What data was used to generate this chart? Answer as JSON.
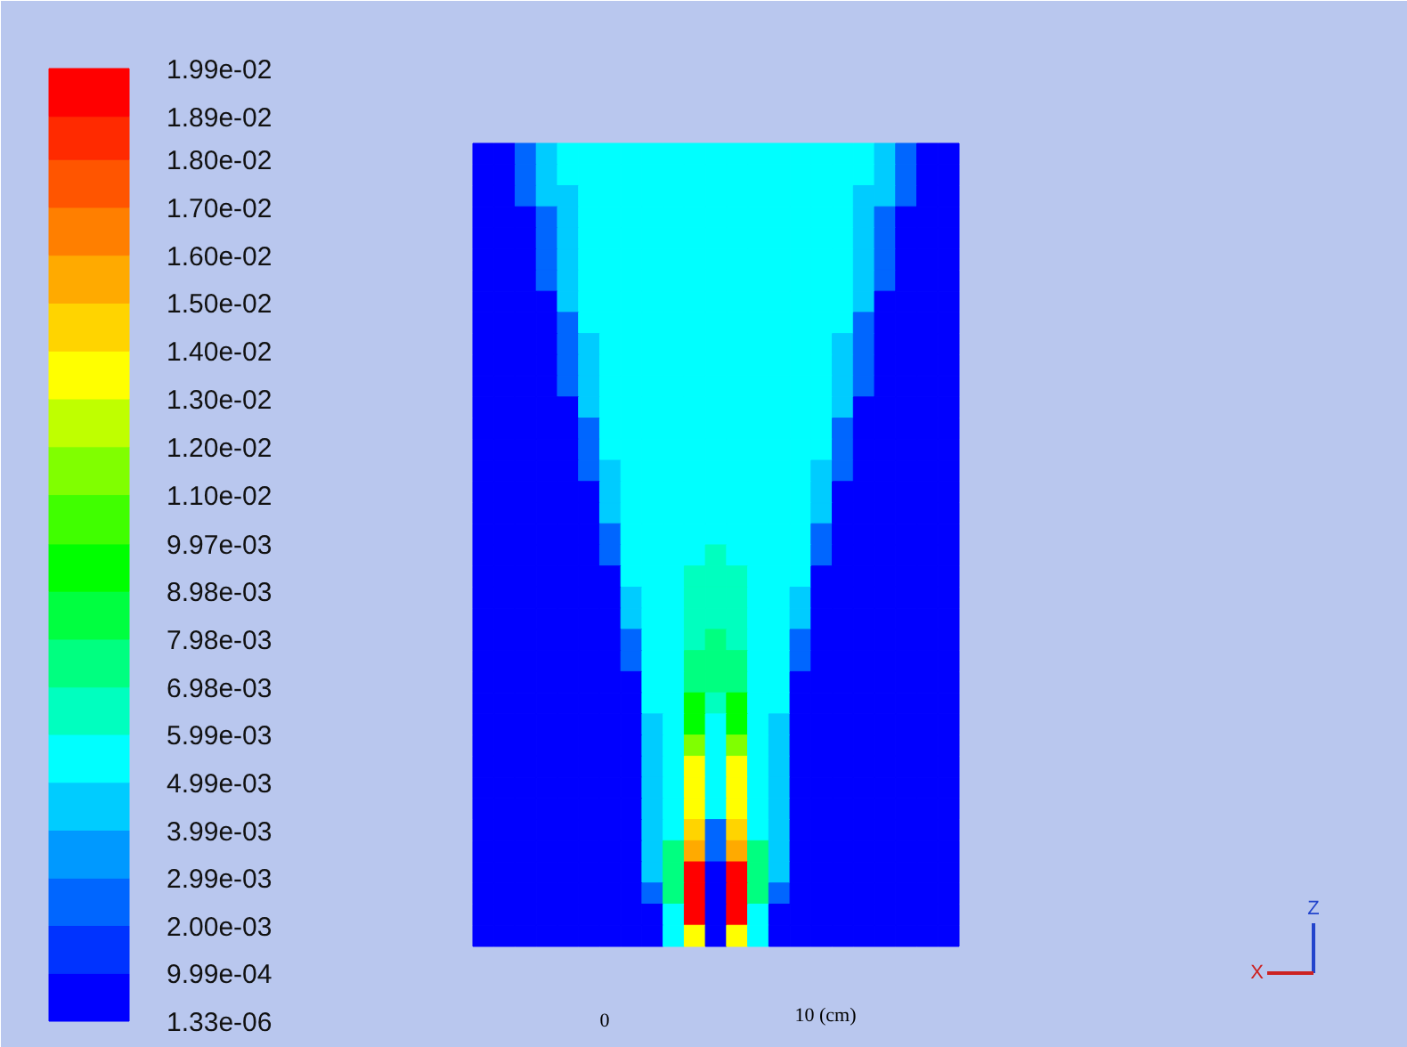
{
  "chart_data": {
    "type": "heatmap",
    "categories": [
      null,
      null,
      null,
      null,
      null,
      null,
      null,
      null,
      null,
      null,
      null,
      null,
      null,
      null,
      null,
      null,
      null,
      null,
      null,
      null,
      null,
      null,
      null
    ],
    "y_categories": [
      null,
      null,
      null,
      null,
      null,
      null,
      null,
      null,
      null,
      null,
      null,
      null,
      null,
      null,
      null,
      null,
      null,
      null,
      null,
      null,
      null,
      null,
      null,
      null,
      null,
      null,
      null,
      null,
      null,
      null,
      null,
      null,
      null,
      null,
      null,
      null,
      null,
      null
    ],
    "clim": [
      1.33e-06,
      0.0199
    ],
    "cticks": [
      {
        "value": 1.33e-06,
        "label": "1.33e-06"
      },
      {
        "value": 0.000999,
        "label": "9.99e-04"
      },
      {
        "value": 0.002,
        "label": "2.00e-03"
      },
      {
        "value": 0.00299,
        "label": "2.99e-03"
      },
      {
        "value": 0.00399,
        "label": "3.99e-03"
      },
      {
        "value": 0.00499,
        "label": "4.99e-03"
      },
      {
        "value": 0.00599,
        "label": "5.99e-03"
      },
      {
        "value": 0.00698,
        "label": "6.98e-03"
      },
      {
        "value": 0.00798,
        "label": "7.98e-03"
      },
      {
        "value": 0.00898,
        "label": "8.98e-03"
      },
      {
        "value": 0.00997,
        "label": "9.97e-03"
      },
      {
        "value": 0.011,
        "label": "1.10e-02"
      },
      {
        "value": 0.012,
        "label": "1.20e-02"
      },
      {
        "value": 0.013,
        "label": "1.30e-02"
      },
      {
        "value": 0.014,
        "label": "1.40e-02"
      },
      {
        "value": 0.015,
        "label": "1.50e-02"
      },
      {
        "value": 0.016,
        "label": "1.60e-02"
      },
      {
        "value": 0.017,
        "label": "1.70e-02"
      },
      {
        "value": 0.018,
        "label": "1.80e-02"
      },
      {
        "value": 0.0189,
        "label": "1.89e-02"
      },
      {
        "value": 0.0199,
        "label": "1.99e-02"
      }
    ],
    "annotations": [
      "0",
      "10 (cm)",
      "X",
      "Z"
    ],
    "cells": [
      [
        0.0005,
        0.0005,
        0.0025,
        0.0045,
        0.0055,
        0.0055,
        0.0055,
        0.0055,
        0.0055,
        0.0055,
        0.0055,
        0.0055,
        0.0055,
        0.0055,
        0.0055,
        0.0055,
        0.0055,
        0.0055,
        0.0055,
        0.0045,
        0.0025,
        0.0005,
        0.0005
      ],
      [
        0.0005,
        0.0005,
        0.0025,
        0.0045,
        0.0055,
        0.0055,
        0.0055,
        0.0055,
        0.0055,
        0.0055,
        0.0055,
        0.0055,
        0.0055,
        0.0055,
        0.0055,
        0.0055,
        0.0055,
        0.0055,
        0.0055,
        0.0045,
        0.0025,
        0.0005,
        0.0005
      ],
      [
        0.0005,
        0.0005,
        0.0025,
        0.0045,
        0.0045,
        0.0055,
        0.0055,
        0.0055,
        0.0055,
        0.0055,
        0.0055,
        0.0055,
        0.0055,
        0.0055,
        0.0055,
        0.0055,
        0.0055,
        0.0055,
        0.0045,
        0.0045,
        0.0025,
        0.0005,
        0.0005
      ],
      [
        0.0005,
        0.0005,
        0.0005,
        0.0025,
        0.0045,
        0.0055,
        0.0055,
        0.0055,
        0.0055,
        0.0055,
        0.0055,
        0.0055,
        0.0055,
        0.0055,
        0.0055,
        0.0055,
        0.0055,
        0.0055,
        0.0045,
        0.0025,
        0.0005,
        0.0005,
        0.0005
      ],
      [
        0.0005,
        0.0005,
        0.0005,
        0.0025,
        0.0045,
        0.0055,
        0.0055,
        0.0055,
        0.0055,
        0.0055,
        0.0055,
        0.0055,
        0.0055,
        0.0055,
        0.0055,
        0.0055,
        0.0055,
        0.0055,
        0.0045,
        0.0025,
        0.0005,
        0.0005,
        0.0005
      ],
      [
        0.0005,
        0.0005,
        0.0005,
        0.0025,
        0.0045,
        0.0055,
        0.0055,
        0.0055,
        0.0055,
        0.0055,
        0.0055,
        0.0055,
        0.0055,
        0.0055,
        0.0055,
        0.0055,
        0.0055,
        0.0055,
        0.0045,
        0.0025,
        0.0005,
        0.0005,
        0.0005
      ],
      [
        0.0005,
        0.0005,
        0.0005,
        0.0025,
        0.0045,
        0.0055,
        0.0055,
        0.0055,
        0.0055,
        0.0055,
        0.0055,
        0.0055,
        0.0055,
        0.0055,
        0.0055,
        0.0055,
        0.0055,
        0.0055,
        0.0045,
        0.0025,
        0.0005,
        0.0005,
        0.0005
      ],
      [
        0.0005,
        0.0005,
        0.0005,
        0.0005,
        0.0045,
        0.0055,
        0.0055,
        0.0055,
        0.0055,
        0.0055,
        0.0055,
        0.0055,
        0.0055,
        0.0055,
        0.0055,
        0.0055,
        0.0055,
        0.0055,
        0.0045,
        0.0005,
        0.0005,
        0.0005,
        0.0005
      ],
      [
        0.0005,
        0.0005,
        0.0005,
        0.0005,
        0.0025,
        0.0055,
        0.0055,
        0.0055,
        0.0055,
        0.0055,
        0.0055,
        0.0055,
        0.0055,
        0.0055,
        0.0055,
        0.0055,
        0.0055,
        0.0055,
        0.0025,
        0.0005,
        0.0005,
        0.0005,
        0.0005
      ],
      [
        0.0005,
        0.0005,
        0.0005,
        0.0005,
        0.0025,
        0.0045,
        0.0055,
        0.0055,
        0.0055,
        0.0055,
        0.0055,
        0.0055,
        0.0055,
        0.0055,
        0.0055,
        0.0055,
        0.0055,
        0.0045,
        0.0025,
        0.0005,
        0.0005,
        0.0005,
        0.0005
      ],
      [
        0.0005,
        0.0005,
        0.0005,
        0.0005,
        0.0025,
        0.0045,
        0.0055,
        0.0055,
        0.0055,
        0.0055,
        0.0055,
        0.0055,
        0.0055,
        0.0055,
        0.0055,
        0.0055,
        0.0055,
        0.0045,
        0.0025,
        0.0005,
        0.0005,
        0.0005,
        0.0005
      ],
      [
        0.0005,
        0.0005,
        0.0005,
        0.0005,
        0.0025,
        0.0045,
        0.0055,
        0.0055,
        0.0055,
        0.0055,
        0.0055,
        0.0055,
        0.0055,
        0.0055,
        0.0055,
        0.0055,
        0.0055,
        0.0045,
        0.0025,
        0.0005,
        0.0005,
        0.0005,
        0.0005
      ],
      [
        0.0005,
        0.0005,
        0.0005,
        0.0005,
        0.0005,
        0.0045,
        0.0055,
        0.0055,
        0.0055,
        0.0055,
        0.0055,
        0.0055,
        0.0055,
        0.0055,
        0.0055,
        0.0055,
        0.0055,
        0.0045,
        0.0005,
        0.0005,
        0.0005,
        0.0005,
        0.0005
      ],
      [
        0.0005,
        0.0005,
        0.0005,
        0.0005,
        0.0005,
        0.0025,
        0.0055,
        0.0055,
        0.0055,
        0.0055,
        0.0055,
        0.0055,
        0.0055,
        0.0055,
        0.0055,
        0.0055,
        0.0055,
        0.0025,
        0.0005,
        0.0005,
        0.0005,
        0.0005,
        0.0005
      ],
      [
        0.0005,
        0.0005,
        0.0005,
        0.0005,
        0.0005,
        0.0025,
        0.0055,
        0.0055,
        0.0055,
        0.0055,
        0.0055,
        0.0055,
        0.0055,
        0.0055,
        0.0055,
        0.0055,
        0.0055,
        0.0025,
        0.0005,
        0.0005,
        0.0005,
        0.0005,
        0.0005
      ],
      [
        0.0005,
        0.0005,
        0.0005,
        0.0005,
        0.0005,
        0.0025,
        0.0045,
        0.0055,
        0.0055,
        0.0055,
        0.0055,
        0.0055,
        0.0055,
        0.0055,
        0.0055,
        0.0055,
        0.0045,
        0.0025,
        0.0005,
        0.0005,
        0.0005,
        0.0005,
        0.0005
      ],
      [
        0.0005,
        0.0005,
        0.0005,
        0.0005,
        0.0005,
        0.0005,
        0.0045,
        0.0055,
        0.0055,
        0.0055,
        0.0055,
        0.0055,
        0.0055,
        0.0055,
        0.0055,
        0.0055,
        0.0045,
        0.0005,
        0.0005,
        0.0005,
        0.0005,
        0.0005,
        0.0005
      ],
      [
        0.0005,
        0.0005,
        0.0005,
        0.0005,
        0.0005,
        0.0005,
        0.0045,
        0.0055,
        0.0055,
        0.0055,
        0.0055,
        0.0055,
        0.0055,
        0.0055,
        0.0055,
        0.0055,
        0.0045,
        0.0005,
        0.0005,
        0.0005,
        0.0005,
        0.0005,
        0.0005
      ],
      [
        0.0005,
        0.0005,
        0.0005,
        0.0005,
        0.0005,
        0.0005,
        0.0025,
        0.0055,
        0.0055,
        0.0055,
        0.0055,
        0.0055,
        0.0055,
        0.0055,
        0.0055,
        0.0055,
        0.0025,
        0.0005,
        0.0005,
        0.0005,
        0.0005,
        0.0005,
        0.0005
      ],
      [
        0.0005,
        0.0005,
        0.0005,
        0.0005,
        0.0005,
        0.0005,
        0.0025,
        0.0055,
        0.0055,
        0.0055,
        0.0055,
        0.0065,
        0.0055,
        0.0055,
        0.0055,
        0.0055,
        0.0025,
        0.0005,
        0.0005,
        0.0005,
        0.0005,
        0.0005,
        0.0005
      ],
      [
        0.0005,
        0.0005,
        0.0005,
        0.0005,
        0.0005,
        0.0005,
        0.0005,
        0.0055,
        0.0055,
        0.0055,
        0.0065,
        0.0065,
        0.0065,
        0.0055,
        0.0055,
        0.0055,
        0.0005,
        0.0005,
        0.0005,
        0.0005,
        0.0005,
        0.0005,
        0.0005
      ],
      [
        0.0005,
        0.0005,
        0.0005,
        0.0005,
        0.0005,
        0.0005,
        0.0005,
        0.0045,
        0.0055,
        0.0055,
        0.0065,
        0.0065,
        0.0065,
        0.0055,
        0.0055,
        0.0045,
        0.0005,
        0.0005,
        0.0005,
        0.0005,
        0.0005,
        0.0005,
        0.0005
      ],
      [
        0.0005,
        0.0005,
        0.0005,
        0.0005,
        0.0005,
        0.0005,
        0.0005,
        0.0045,
        0.0055,
        0.0055,
        0.0065,
        0.0065,
        0.0065,
        0.0055,
        0.0055,
        0.0045,
        0.0005,
        0.0005,
        0.0005,
        0.0005,
        0.0005,
        0.0005,
        0.0005
      ],
      [
        0.0005,
        0.0005,
        0.0005,
        0.0005,
        0.0005,
        0.0005,
        0.0005,
        0.0025,
        0.0055,
        0.0055,
        0.0065,
        0.0075,
        0.0065,
        0.0055,
        0.0055,
        0.0025,
        0.0005,
        0.0005,
        0.0005,
        0.0005,
        0.0005,
        0.0005,
        0.0005
      ],
      [
        0.0005,
        0.0005,
        0.0005,
        0.0005,
        0.0005,
        0.0005,
        0.0005,
        0.0025,
        0.0055,
        0.0055,
        0.0075,
        0.0075,
        0.0075,
        0.0055,
        0.0055,
        0.0025,
        0.0005,
        0.0005,
        0.0005,
        0.0005,
        0.0005,
        0.0005,
        0.0005
      ],
      [
        0.0005,
        0.0005,
        0.0005,
        0.0005,
        0.0005,
        0.0005,
        0.0005,
        0.0005,
        0.0055,
        0.0055,
        0.0075,
        0.0075,
        0.0075,
        0.0055,
        0.0055,
        0.0005,
        0.0005,
        0.0005,
        0.0005,
        0.0005,
        0.0005,
        0.0005,
        0.0005
      ],
      [
        0.0005,
        0.0005,
        0.0005,
        0.0005,
        0.0005,
        0.0005,
        0.0005,
        0.0005,
        0.0055,
        0.0055,
        0.0095,
        0.0065,
        0.0095,
        0.0055,
        0.0055,
        0.0005,
        0.0005,
        0.0005,
        0.0005,
        0.0005,
        0.0005,
        0.0005,
        0.0005
      ],
      [
        0.0005,
        0.0005,
        0.0005,
        0.0005,
        0.0005,
        0.0005,
        0.0005,
        0.0005,
        0.0045,
        0.0055,
        0.0095,
        0.0055,
        0.0095,
        0.0055,
        0.0045,
        0.0005,
        0.0005,
        0.0005,
        0.0005,
        0.0005,
        0.0005,
        0.0005,
        0.0005
      ],
      [
        0.0005,
        0.0005,
        0.0005,
        0.0005,
        0.0005,
        0.0005,
        0.0005,
        0.0005,
        0.0045,
        0.0055,
        0.0115,
        0.0055,
        0.0115,
        0.0055,
        0.0045,
        0.0005,
        0.0005,
        0.0005,
        0.0005,
        0.0005,
        0.0005,
        0.0005,
        0.0005
      ],
      [
        0.0005,
        0.0005,
        0.0005,
        0.0005,
        0.0005,
        0.0005,
        0.0005,
        0.0005,
        0.0045,
        0.0055,
        0.0135,
        0.0055,
        0.0135,
        0.0055,
        0.0045,
        0.0005,
        0.0005,
        0.0005,
        0.0005,
        0.0005,
        0.0005,
        0.0005,
        0.0005
      ],
      [
        0.0005,
        0.0005,
        0.0005,
        0.0005,
        0.0005,
        0.0005,
        0.0005,
        0.0005,
        0.0045,
        0.0055,
        0.0135,
        0.0055,
        0.0135,
        0.0055,
        0.0045,
        0.0005,
        0.0005,
        0.0005,
        0.0005,
        0.0005,
        0.0005,
        0.0005,
        0.0005
      ],
      [
        0.0005,
        0.0005,
        0.0005,
        0.0005,
        0.0005,
        0.0005,
        0.0005,
        0.0005,
        0.0045,
        0.0055,
        0.0135,
        0.0055,
        0.0135,
        0.0055,
        0.0045,
        0.0005,
        0.0005,
        0.0005,
        0.0005,
        0.0005,
        0.0005,
        0.0005,
        0.0005
      ],
      [
        0.0005,
        0.0005,
        0.0005,
        0.0005,
        0.0005,
        0.0005,
        0.0005,
        0.0005,
        0.0045,
        0.0055,
        0.0145,
        0.0025,
        0.0145,
        0.0055,
        0.0045,
        0.0005,
        0.0005,
        0.0005,
        0.0005,
        0.0005,
        0.0005,
        0.0005,
        0.0005
      ],
      [
        0.0005,
        0.0005,
        0.0005,
        0.0005,
        0.0005,
        0.0005,
        0.0005,
        0.0005,
        0.0045,
        0.0075,
        0.0155,
        0.0025,
        0.0155,
        0.0075,
        0.0045,
        0.0005,
        0.0005,
        0.0005,
        0.0005,
        0.0005,
        0.0005,
        0.0005,
        0.0005
      ],
      [
        0.0005,
        0.0005,
        0.0005,
        0.0005,
        0.0005,
        0.0005,
        0.0005,
        0.0005,
        0.0045,
        0.0075,
        0.0194,
        0.0005,
        0.0194,
        0.0075,
        0.0045,
        0.0005,
        0.0005,
        0.0005,
        0.0005,
        0.0005,
        0.0005,
        0.0005,
        0.0005
      ],
      [
        0.0005,
        0.0005,
        0.0005,
        0.0005,
        0.0005,
        0.0005,
        0.0005,
        0.0005,
        0.0025,
        0.0075,
        0.0194,
        0.0005,
        0.0194,
        0.0075,
        0.0025,
        0.0005,
        0.0005,
        0.0005,
        0.0005,
        0.0005,
        0.0005,
        0.0005,
        0.0005
      ],
      [
        0.0005,
        0.0005,
        0.0005,
        0.0005,
        0.0005,
        0.0005,
        0.0005,
        0.0005,
        0.0005,
        0.0055,
        0.0194,
        0.0005,
        0.0194,
        0.0055,
        0.0005,
        0.0005,
        0.0005,
        0.0005,
        0.0005,
        0.0005,
        0.0005,
        0.0005,
        0.0005
      ],
      [
        0.0005,
        0.0005,
        0.0005,
        0.0005,
        0.0005,
        0.0005,
        0.0005,
        0.0005,
        0.0005,
        0.0055,
        0.0135,
        0.0005,
        0.0135,
        0.0055,
        0.0005,
        0.0005,
        0.0005,
        0.0005,
        0.0005,
        0.0005,
        0.0005,
        0.0005,
        0.0005
      ]
    ]
  }
}
